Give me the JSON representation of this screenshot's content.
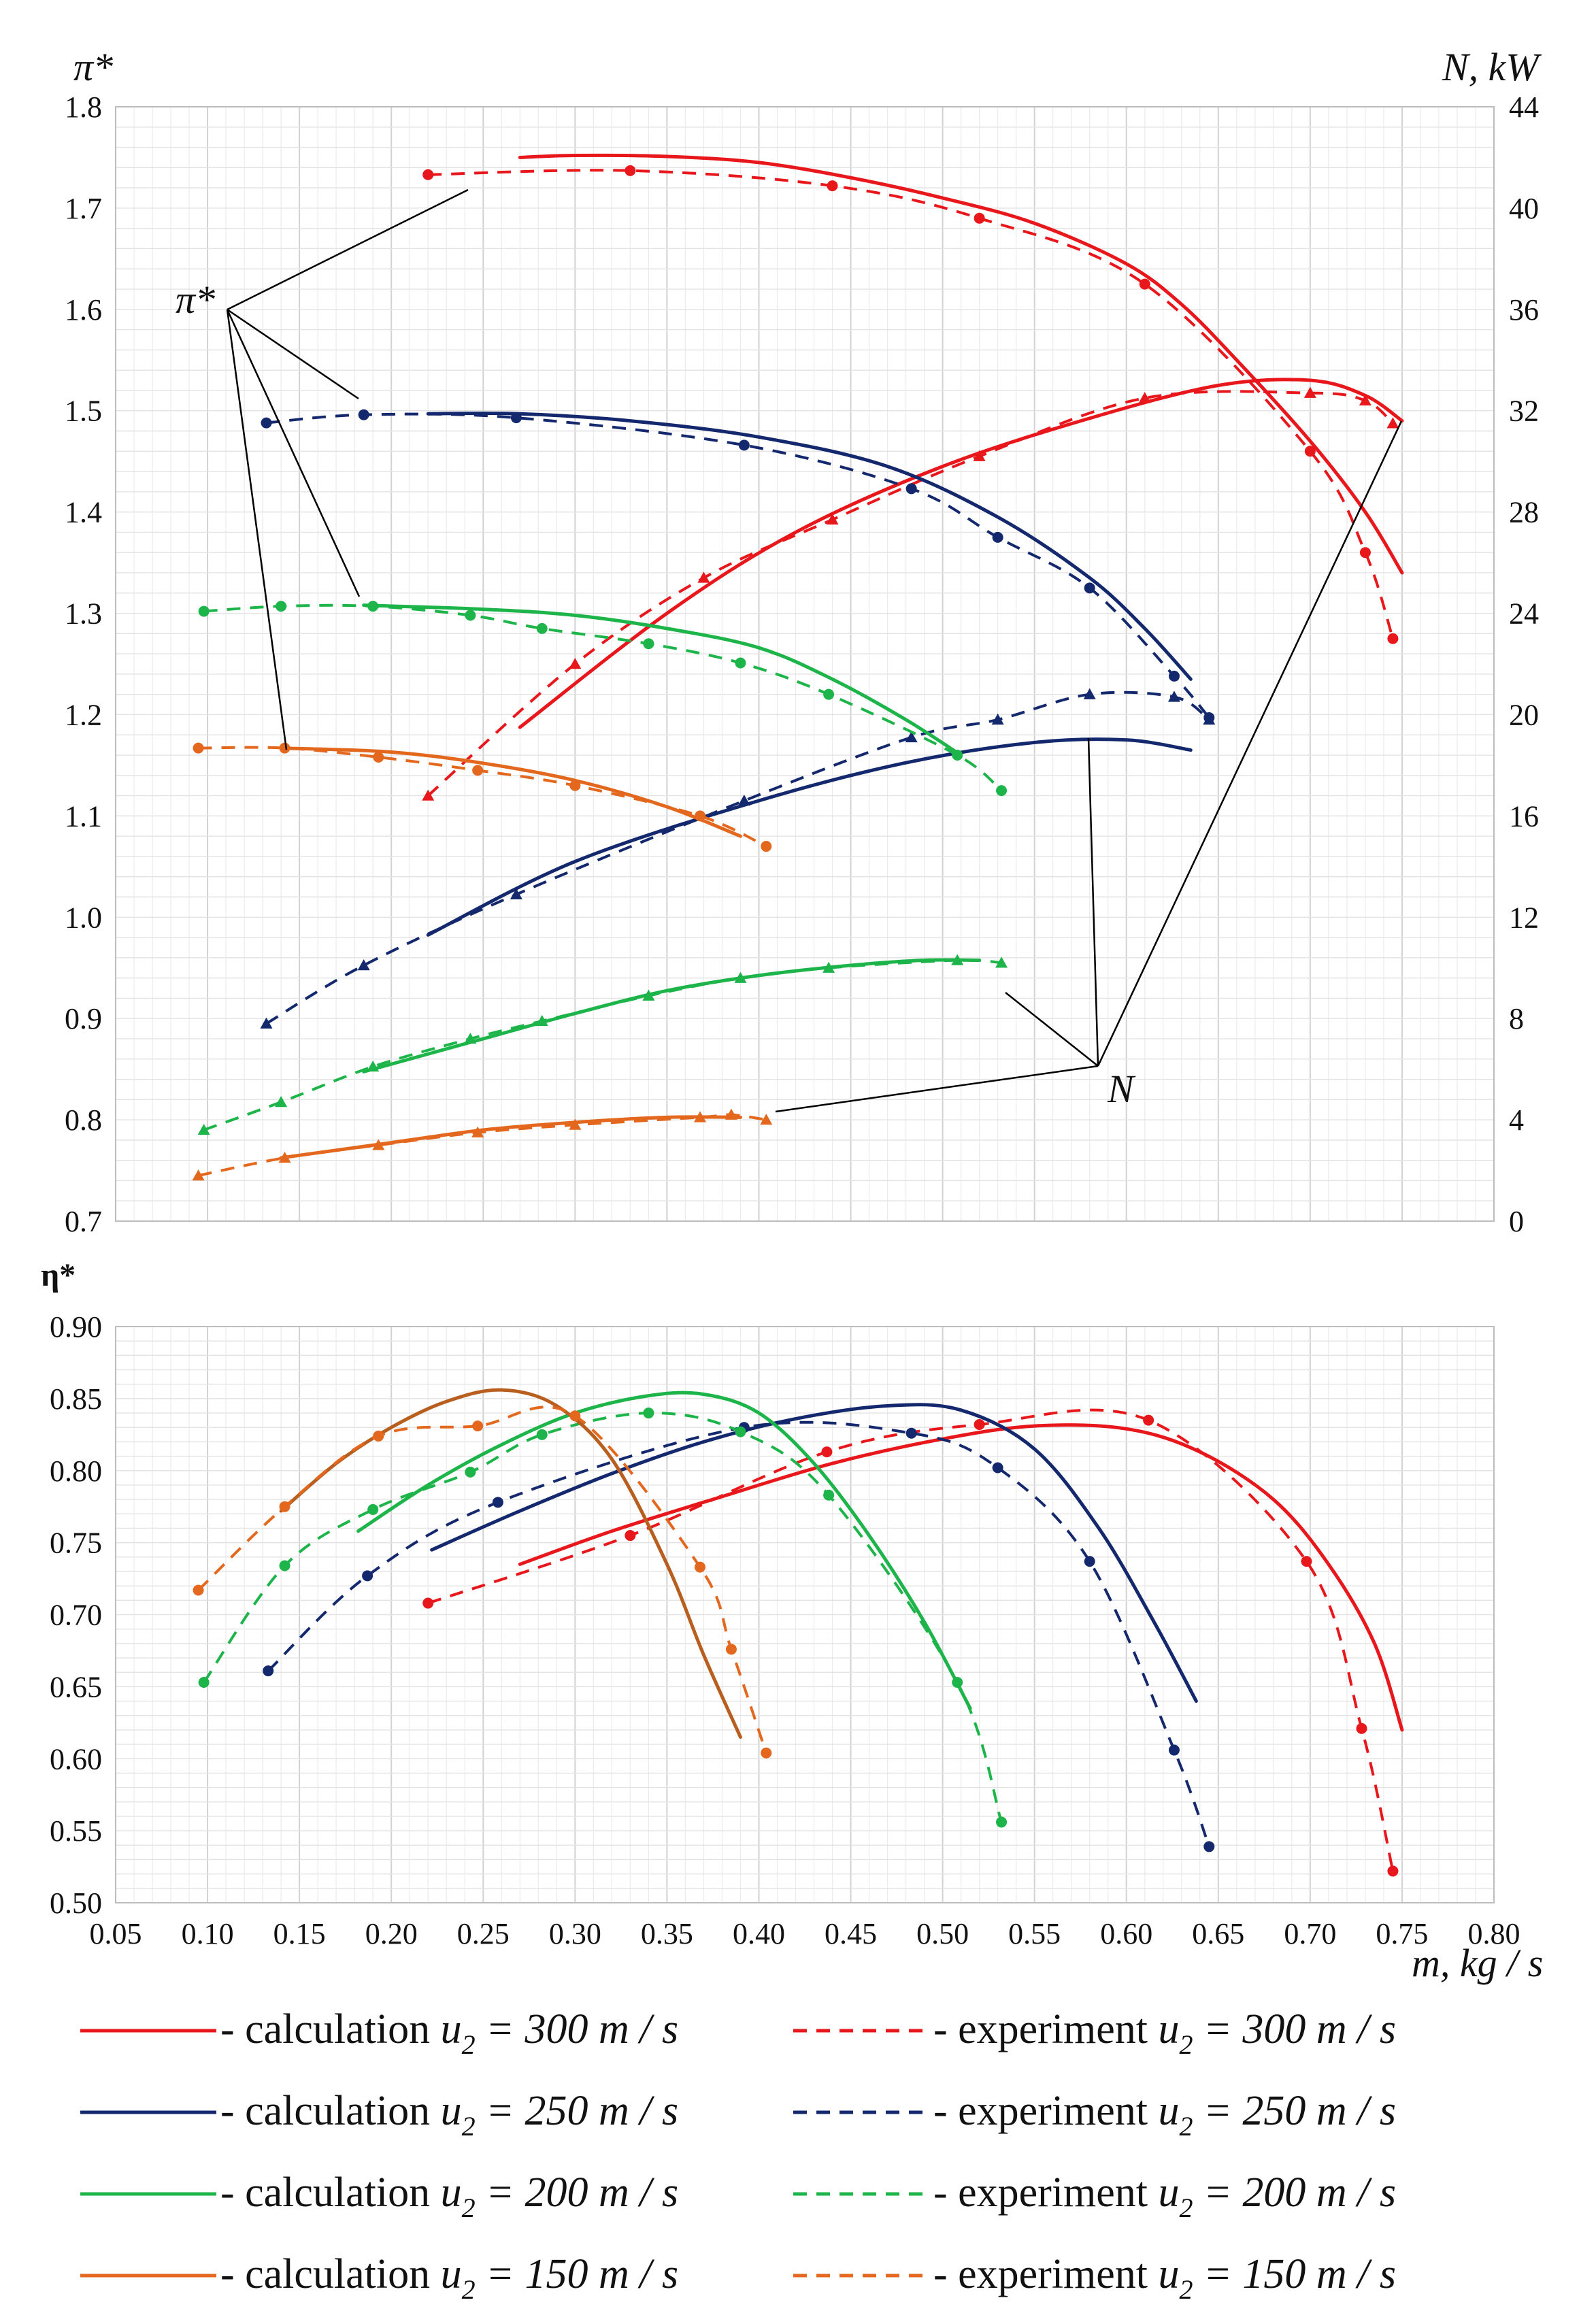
{
  "chart_data": [
    {
      "type": "line",
      "title": "",
      "xlabel": "m, kg / s",
      "ylabel": "π*",
      "ylabel_right": "N, kW",
      "xlim": [
        0.05,
        0.8
      ],
      "ylim": [
        0.7,
        1.8
      ],
      "ylim_right": [
        0,
        44
      ],
      "x_ticks": [
        0.1,
        0.15,
        0.2,
        0.25,
        0.3,
        0.35,
        0.4,
        0.45,
        0.5,
        0.55,
        0.6,
        0.65,
        0.7,
        0.75,
        0.8
      ],
      "y_ticks": [
        "0.7",
        "0.8",
        "0.9",
        "1.0",
        "1.1",
        "1.2",
        "1.3",
        "1.4",
        "1.5",
        "1.6",
        "1.7",
        "1.8"
      ],
      "y_ticks_right": [
        "0",
        "4",
        "8",
        "12",
        "16",
        "20",
        "24",
        "28",
        "32",
        "36",
        "40",
        "44"
      ],
      "grid": true,
      "annotations": [
        "π*",
        "N"
      ],
      "series": [
        {
          "name": "π* calculation u2 = 300 m/s",
          "axis": "left",
          "style": "solid",
          "color": "#e8171c",
          "x": [
            0.27,
            0.3,
            0.35,
            0.4,
            0.45,
            0.5,
            0.55,
            0.6,
            0.63,
            0.66,
            0.7,
            0.73,
            0.75
          ],
          "y": [
            1.75,
            1.752,
            1.751,
            1.745,
            1.73,
            1.71,
            1.685,
            1.645,
            1.605,
            1.55,
            1.47,
            1.4,
            1.34
          ]
        },
        {
          "name": "π* experiment u2 = 300 m/s",
          "axis": "left",
          "style": "dashed",
          "color": "#e8171c",
          "x": [
            0.22,
            0.33,
            0.44,
            0.52,
            0.61,
            0.7,
            0.73,
            0.745
          ],
          "y": [
            1.733,
            1.737,
            1.722,
            1.69,
            1.625,
            1.46,
            1.36,
            1.275
          ]
        },
        {
          "name": "N calculation u2 = 300 m/s",
          "axis": "right",
          "style": "solid",
          "color": "#e8171c",
          "x": [
            0.27,
            0.35,
            0.42,
            0.5,
            0.58,
            0.65,
            0.7,
            0.73,
            0.75
          ],
          "y": [
            19.5,
            24.0,
            27.2,
            29.8,
            31.7,
            33.0,
            33.2,
            32.6,
            31.6
          ]
        },
        {
          "name": "N experiment u2 = 300 m/s",
          "axis": "right",
          "style": "dashed",
          "color": "#e8171c",
          "x": [
            0.22,
            0.3,
            0.37,
            0.44,
            0.52,
            0.61,
            0.7,
            0.73,
            0.745
          ],
          "y": [
            16.8,
            22.0,
            25.4,
            27.7,
            30.2,
            32.5,
            32.7,
            32.4,
            31.5
          ]
        },
        {
          "name": "π* calculation u2 = 250 m/s",
          "axis": "left",
          "style": "solid",
          "color": "#14286e",
          "x": [
            0.22,
            0.27,
            0.33,
            0.4,
            0.47,
            0.53,
            0.58,
            0.61,
            0.635
          ],
          "y": [
            1.497,
            1.497,
            1.49,
            1.474,
            1.445,
            1.395,
            1.335,
            1.285,
            1.235
          ]
        },
        {
          "name": "π* experiment u2 = 250 m/s",
          "axis": "left",
          "style": "dashed",
          "color": "#14286e",
          "x": [
            0.132,
            0.185,
            0.268,
            0.392,
            0.483,
            0.53,
            0.58,
            0.626,
            0.645
          ],
          "y": [
            1.488,
            1.496,
            1.493,
            1.466,
            1.423,
            1.375,
            1.325,
            1.238,
            1.197
          ]
        },
        {
          "name": "N calculation u2 = 250 m/s",
          "axis": "right",
          "style": "solid",
          "color": "#14286e",
          "x": [
            0.22,
            0.3,
            0.4,
            0.48,
            0.55,
            0.6,
            0.635
          ],
          "y": [
            11.3,
            14.2,
            16.6,
            18.1,
            18.9,
            19.0,
            18.6
          ]
        },
        {
          "name": "N experiment u2 = 250 m/s",
          "axis": "right",
          "style": "dashed",
          "color": "#14286e",
          "x": [
            0.132,
            0.185,
            0.268,
            0.392,
            0.483,
            0.53,
            0.58,
            0.626,
            0.645
          ],
          "y": [
            7.8,
            10.1,
            12.9,
            16.6,
            19.1,
            19.8,
            20.8,
            20.7,
            19.8
          ]
        },
        {
          "name": "π* calculation u2 = 200 m/s",
          "axis": "left",
          "style": "solid",
          "color": "#1db44a",
          "x": [
            0.185,
            0.25,
            0.3,
            0.35,
            0.4,
            0.44,
            0.48,
            0.51
          ],
          "y": [
            1.308,
            1.304,
            1.298,
            1.285,
            1.266,
            1.235,
            1.195,
            1.16
          ]
        },
        {
          "name": "π* experiment u2 = 200 m/s",
          "axis": "left",
          "style": "dashed",
          "color": "#1db44a",
          "x": [
            0.098,
            0.14,
            0.19,
            0.243,
            0.282,
            0.34,
            0.39,
            0.438,
            0.508,
            0.532
          ],
          "y": [
            1.302,
            1.307,
            1.307,
            1.298,
            1.285,
            1.27,
            1.251,
            1.22,
            1.16,
            1.125
          ]
        },
        {
          "name": "N calculation u2 = 200 m/s",
          "axis": "right",
          "style": "solid",
          "color": "#1db44a",
          "x": [
            0.185,
            0.25,
            0.3,
            0.35,
            0.4,
            0.45,
            0.49,
            0.52
          ],
          "y": [
            5.9,
            7.2,
            8.2,
            9.1,
            9.7,
            10.1,
            10.3,
            10.3
          ]
        },
        {
          "name": "N experiment u2 = 200 m/s",
          "axis": "right",
          "style": "dashed",
          "color": "#1db44a",
          "x": [
            0.098,
            0.14,
            0.19,
            0.243,
            0.282,
            0.34,
            0.39,
            0.438,
            0.508,
            0.532
          ],
          "y": [
            3.6,
            4.7,
            6.1,
            7.2,
            7.9,
            8.9,
            9.6,
            10.0,
            10.3,
            10.2
          ]
        },
        {
          "name": "π* calculation u2 = 150 m/s",
          "axis": "left",
          "style": "solid",
          "color": "#e3681e",
          "x": [
            0.14,
            0.2,
            0.25,
            0.3,
            0.35,
            0.39
          ],
          "y": [
            1.167,
            1.163,
            1.152,
            1.135,
            1.109,
            1.08
          ]
        },
        {
          "name": "π* experiment u2 = 150 m/s",
          "axis": "left",
          "style": "dashed",
          "color": "#e3681e",
          "x": [
            0.095,
            0.142,
            0.193,
            0.247,
            0.3,
            0.368,
            0.404
          ],
          "y": [
            1.167,
            1.167,
            1.158,
            1.145,
            1.13,
            1.1,
            1.07
          ]
        },
        {
          "name": "N calculation u2 = 150 m/s",
          "axis": "right",
          "style": "solid",
          "color": "#e3681e",
          "x": [
            0.14,
            0.2,
            0.25,
            0.3,
            0.35,
            0.39
          ],
          "y": [
            2.5,
            3.1,
            3.6,
            3.9,
            4.1,
            4.1
          ]
        },
        {
          "name": "N experiment u2 = 150 m/s",
          "axis": "right",
          "style": "dashed",
          "color": "#e3681e",
          "x": [
            0.095,
            0.142,
            0.193,
            0.247,
            0.3,
            0.368,
            0.385,
            0.404
          ],
          "y": [
            1.8,
            2.5,
            3.0,
            3.5,
            3.8,
            4.1,
            4.2,
            4.0
          ]
        }
      ]
    },
    {
      "type": "line",
      "title": "",
      "xlabel": "m, kg / s",
      "ylabel": "η*",
      "xlim": [
        0.05,
        0.8
      ],
      "ylim": [
        0.5,
        0.9
      ],
      "x_ticks": [
        0.05,
        0.1,
        0.15,
        0.2,
        0.25,
        0.3,
        0.35,
        0.4,
        0.45,
        0.5,
        0.55,
        0.6,
        0.65,
        0.7,
        0.75,
        0.8
      ],
      "x_tick_labels": [
        "0.05",
        "0.10",
        "0.15",
        "0.20",
        "0.25",
        "0.30",
        "0.35",
        "0.40",
        "0.45",
        "0.50",
        "0.55",
        "0.60",
        "0.65",
        "0.70",
        "0.75",
        "0.80"
      ],
      "y_ticks": [
        "0.50",
        "0.55",
        "0.60",
        "0.65",
        "0.70",
        "0.75",
        "0.80",
        "0.85",
        "0.90"
      ],
      "grid": true,
      "series": [
        {
          "name": "η* calculation u2 = 300 m/s",
          "style": "solid",
          "color": "#e8171c",
          "x": [
            0.27,
            0.32,
            0.38,
            0.44,
            0.5,
            0.55,
            0.6,
            0.64,
            0.68,
            0.71,
            0.735,
            0.75
          ],
          "y": [
            0.735,
            0.758,
            0.782,
            0.805,
            0.822,
            0.831,
            0.829,
            0.813,
            0.78,
            0.735,
            0.68,
            0.62
          ]
        },
        {
          "name": "η* experiment u2 = 300 m/s",
          "style": "dashed",
          "color": "#e8171c",
          "x": [
            0.22,
            0.33,
            0.437,
            0.52,
            0.612,
            0.698,
            0.728,
            0.745
          ],
          "y": [
            0.708,
            0.755,
            0.813,
            0.832,
            0.835,
            0.737,
            0.621,
            0.522
          ]
        },
        {
          "name": "η* calculation u2 = 250 m/s",
          "style": "solid",
          "color": "#14286e",
          "x": [
            0.222,
            0.27,
            0.32,
            0.37,
            0.42,
            0.47,
            0.51,
            0.55,
            0.585,
            0.615,
            0.638
          ],
          "y": [
            0.745,
            0.772,
            0.798,
            0.82,
            0.836,
            0.845,
            0.842,
            0.815,
            0.76,
            0.695,
            0.64
          ]
        },
        {
          "name": "η* experiment u2 = 250 m/s",
          "style": "dashed",
          "color": "#14286e",
          "x": [
            0.133,
            0.187,
            0.258,
            0.392,
            0.483,
            0.53,
            0.58,
            0.626,
            0.645
          ],
          "y": [
            0.661,
            0.727,
            0.778,
            0.83,
            0.826,
            0.802,
            0.737,
            0.606,
            0.539
          ]
        },
        {
          "name": "η* calculation u2 = 200 m/s",
          "style": "solid",
          "color": "#1db44a",
          "x": [
            0.182,
            0.22,
            0.26,
            0.3,
            0.34,
            0.37,
            0.4,
            0.43,
            0.46,
            0.49,
            0.515
          ],
          "y": [
            0.758,
            0.79,
            0.818,
            0.84,
            0.852,
            0.853,
            0.84,
            0.805,
            0.755,
            0.695,
            0.635
          ]
        },
        {
          "name": "η* experiment u2 = 200 m/s",
          "style": "dashed",
          "color": "#1db44a",
          "x": [
            0.098,
            0.142,
            0.19,
            0.243,
            0.282,
            0.34,
            0.39,
            0.438,
            0.508,
            0.532
          ],
          "y": [
            0.653,
            0.734,
            0.773,
            0.799,
            0.825,
            0.84,
            0.827,
            0.783,
            0.653,
            0.556
          ]
        },
        {
          "name": "η* calculation u2 = 150 m/s",
          "style": "solid",
          "color": "#b85f1f",
          "x": [
            0.14,
            0.17,
            0.2,
            0.23,
            0.26,
            0.29,
            0.32,
            0.35,
            0.37,
            0.39
          ],
          "y": [
            0.772,
            0.805,
            0.83,
            0.848,
            0.856,
            0.845,
            0.808,
            0.735,
            0.672,
            0.615
          ]
        },
        {
          "name": "η* experiment u2 = 150 m/s",
          "style": "dashed",
          "color": "#e3681e",
          "x": [
            0.095,
            0.142,
            0.193,
            0.247,
            0.3,
            0.368,
            0.385,
            0.404
          ],
          "y": [
            0.717,
            0.775,
            0.824,
            0.831,
            0.838,
            0.733,
            0.676,
            0.604
          ]
        }
      ]
    }
  ],
  "legend": [
    {
      "style": "solid",
      "color": "#e8171c",
      "label": "- calculation",
      "u": "300"
    },
    {
      "style": "dashed",
      "color": "#e8171c",
      "label": "- experiment",
      "u": "300"
    },
    {
      "style": "solid",
      "color": "#14286e",
      "label": "- calculation",
      "u": "250"
    },
    {
      "style": "dashed",
      "color": "#14286e",
      "label": "- experiment",
      "u": "250"
    },
    {
      "style": "solid",
      "color": "#1db44a",
      "label": "- calculation",
      "u": "200"
    },
    {
      "style": "dashed",
      "color": "#1db44a",
      "label": "- experiment",
      "u": "200"
    },
    {
      "style": "solid",
      "color": "#e3681e",
      "label": "- calculation",
      "u": "150"
    },
    {
      "style": "dashed",
      "color": "#e3681e",
      "label": "- experiment",
      "u": "150"
    }
  ],
  "legend_units": "m / s",
  "legend_var": "u",
  "legend_sub": "2"
}
